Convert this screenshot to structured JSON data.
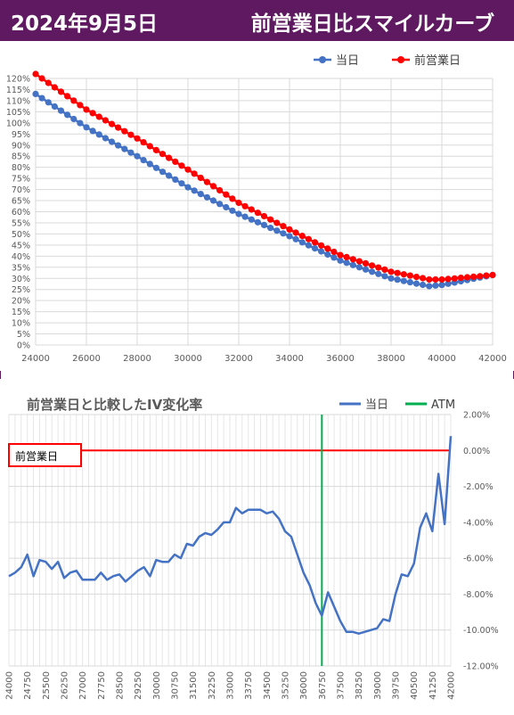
{
  "header": {
    "date": "2024年9月5日",
    "title": "前営業日比スマイルカーブ"
  },
  "colors": {
    "header_bg": "#5e1960",
    "today": "#4472c4",
    "prev": "#ff0000",
    "atm": "#00b050",
    "line2": "#4472c4"
  },
  "chart_data": [
    {
      "type": "line",
      "title": "",
      "legend": {
        "placement": "top-right",
        "entries": [
          "当日",
          "前営業日"
        ]
      },
      "xlim": [
        24000,
        42000
      ],
      "ylim": [
        0,
        1.2
      ],
      "x_ticks": [
        "24000",
        "26000",
        "28000",
        "30000",
        "32000",
        "34000",
        "36000",
        "38000",
        "40000",
        "42000"
      ],
      "y_ticks": [
        "0%",
        "5%",
        "10%",
        "15%",
        "20%",
        "25%",
        "30%",
        "35%",
        "40%",
        "45%",
        "50%",
        "55%",
        "60%",
        "65%",
        "70%",
        "75%",
        "80%",
        "85%",
        "90%",
        "95%",
        "100%",
        "105%",
        "110%",
        "115%",
        "120%"
      ],
      "grid": true,
      "series": [
        {
          "name": "当日",
          "color": "#4472c4",
          "x": [
            24000,
            26000,
            28000,
            30000,
            32000,
            34000,
            36000,
            38000,
            39500,
            40000,
            42000
          ],
          "y": [
            1.13,
            0.98,
            0.85,
            0.71,
            0.59,
            0.49,
            0.38,
            0.3,
            0.265,
            0.27,
            0.315
          ]
        },
        {
          "name": "前営業日",
          "color": "#ff0000",
          "x": [
            24000,
            26000,
            28000,
            30000,
            32000,
            34000,
            36000,
            38000,
            39500,
            40000,
            42000
          ],
          "y": [
            1.22,
            1.06,
            0.93,
            0.79,
            0.64,
            0.52,
            0.405,
            0.33,
            0.295,
            0.295,
            0.315
          ]
        }
      ]
    },
    {
      "type": "line",
      "title": "前営業日と比較したIV変化率",
      "legend": {
        "placement": "top-right",
        "entries": [
          "当日",
          "ATM"
        ]
      },
      "annotation": "前営業日",
      "atm": 36750,
      "ylim": [
        -0.12,
        0.02
      ],
      "y_ticks": [
        "2.00%",
        "0.00%",
        "-2.00%",
        "-4.00%",
        "-6.00%",
        "-8.00%",
        "-10.00%",
        "-12.00%"
      ],
      "x_ticks": [
        "24000",
        "24750",
        "25500",
        "26250",
        "27000",
        "27750",
        "28500",
        "29250",
        "30000",
        "30750",
        "31500",
        "32250",
        "33000",
        "33750",
        "34500",
        "35250",
        "36000",
        "36750",
        "37500",
        "38250",
        "39000",
        "39750",
        "40500",
        "41250",
        "42000"
      ],
      "grid": true,
      "series": [
        {
          "name": "当日",
          "color": "#4472c4",
          "x": [
            24000,
            24250,
            24500,
            24750,
            25000,
            25250,
            25500,
            25750,
            26000,
            26250,
            26500,
            26750,
            27000,
            27250,
            27500,
            27750,
            28000,
            28250,
            28500,
            28750,
            29000,
            29250,
            29500,
            29750,
            30000,
            30250,
            30500,
            30750,
            31000,
            31250,
            31500,
            31750,
            32000,
            32250,
            32500,
            32750,
            33000,
            33250,
            33500,
            33750,
            34000,
            34250,
            34500,
            34750,
            35000,
            35250,
            35500,
            35750,
            36000,
            36250,
            36500,
            36750,
            37000,
            37250,
            37500,
            37750,
            38000,
            38250,
            38500,
            38750,
            39000,
            39250,
            39500,
            39750,
            40000,
            40250,
            40500,
            40750,
            41000,
            41250,
            41500,
            41750,
            42000
          ],
          "y": [
            -0.07,
            -0.068,
            -0.065,
            -0.058,
            -0.07,
            -0.061,
            -0.062,
            -0.066,
            -0.062,
            -0.071,
            -0.068,
            -0.067,
            -0.072,
            -0.072,
            -0.072,
            -0.068,
            -0.072,
            -0.07,
            -0.069,
            -0.073,
            -0.07,
            -0.067,
            -0.065,
            -0.07,
            -0.061,
            -0.062,
            -0.062,
            -0.058,
            -0.06,
            -0.052,
            -0.053,
            -0.048,
            -0.046,
            -0.047,
            -0.044,
            -0.04,
            -0.04,
            -0.032,
            -0.035,
            -0.033,
            -0.033,
            -0.033,
            -0.035,
            -0.034,
            -0.038,
            -0.045,
            -0.048,
            -0.058,
            -0.068,
            -0.075,
            -0.085,
            -0.092,
            -0.079,
            -0.087,
            -0.095,
            -0.101,
            -0.101,
            -0.102,
            -0.101,
            -0.1,
            -0.099,
            -0.094,
            -0.095,
            -0.08,
            -0.069,
            -0.07,
            -0.063,
            -0.043,
            -0.035,
            -0.045,
            -0.013,
            -0.041,
            0.008
          ]
        }
      ]
    }
  ]
}
